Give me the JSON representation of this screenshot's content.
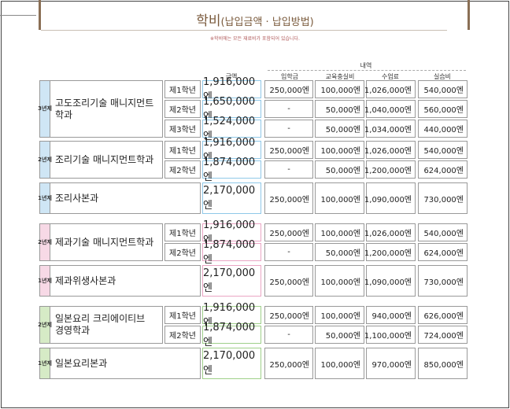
{
  "page": {
    "title_main": "학비",
    "title_sub": "(납입금액 · 납입방법)",
    "note": "※학비에는 모든 재료비가 포함되어 있습니다."
  },
  "headers": {
    "total": "금액",
    "breakdown": "내역",
    "admission": "입학금",
    "facility": "교육충실비",
    "tuition": "수업료",
    "practice": "실습비"
  },
  "groups": [
    {
      "tag": [
        "3",
        "년",
        "제"
      ],
      "name": "고도조리기술 매니지먼트학과",
      "color": "#cfe6f5",
      "border": "#8fc8e8",
      "rows": [
        {
          "grade": "제1학년",
          "total": "1,916,000엔",
          "admission": "250,000엔",
          "facility": "100,000엔",
          "tuition": "1,026,000엔",
          "practice": "540,000엔"
        },
        {
          "grade": "제2학년",
          "total": "1,650,000엔",
          "admission": "-",
          "facility": "50,000엔",
          "tuition": "1,040,000엔",
          "practice": "560,000엔"
        },
        {
          "grade": "제3학년",
          "total": "1,524,000엔",
          "admission": "-",
          "facility": "50,000엔",
          "tuition": "1,034,000엔",
          "practice": "440,000엔"
        }
      ]
    },
    {
      "tag": [
        "2",
        "년",
        "제"
      ],
      "name": "조리기술 매니지먼트학과",
      "color": "#cfe6f5",
      "border": "#8fc8e8",
      "rows": [
        {
          "grade": "제1학년",
          "total": "1,916,000엔",
          "admission": "250,000엔",
          "facility": "100,000엔",
          "tuition": "1,026,000엔",
          "practice": "540,000엔"
        },
        {
          "grade": "제2학년",
          "total": "1,874,000엔",
          "admission": "-",
          "facility": "50,000엔",
          "tuition": "1,200,000엔",
          "practice": "624,000엔"
        }
      ]
    },
    {
      "tag": [
        "1",
        "년",
        "제"
      ],
      "name": "조리사본과",
      "color": "#cfe6f5",
      "border": "#8fc8e8",
      "rows": [
        {
          "grade": "",
          "total": "2,170,000엔",
          "admission": "250,000엔",
          "facility": "100,000엔",
          "tuition": "1,090,000엔",
          "practice": "730,000엔"
        }
      ]
    },
    {
      "tag": [
        "2",
        "년",
        "제"
      ],
      "name": "제과기술 매니지먼트학과",
      "color": "#f7d9e6",
      "border": "#eaa5c4",
      "rows": [
        {
          "grade": "제1학년",
          "total": "1,916,000엔",
          "admission": "250,000엔",
          "facility": "100,000엔",
          "tuition": "1,026,000엔",
          "practice": "540,000엔"
        },
        {
          "grade": "제2학년",
          "total": "1,874,000엔",
          "admission": "-",
          "facility": "50,000엔",
          "tuition": "1,200,000엔",
          "practice": "624,000엔"
        }
      ]
    },
    {
      "tag": [
        "1",
        "년",
        "제"
      ],
      "name": "제과위생사본과",
      "color": "#f7d9e6",
      "border": "#eaa5c4",
      "rows": [
        {
          "grade": "",
          "total": "2,170,000엔",
          "admission": "250,000엔",
          "facility": "100,000엔",
          "tuition": "1,090,000엔",
          "practice": "730,000엔"
        }
      ]
    },
    {
      "tag": [
        "2",
        "년",
        "제"
      ],
      "name": "일본요리 크리에이티브\n경영학과",
      "color": "#d6ebc6",
      "border": "#9fd08a",
      "rows": [
        {
          "grade": "제1학년",
          "total": "1,916,000엔",
          "admission": "250,000엔",
          "facility": "100,000엔",
          "tuition": "940,000엔",
          "practice": "626,000엔"
        },
        {
          "grade": "제2학년",
          "total": "1,874,000엔",
          "admission": "-",
          "facility": "50,000엔",
          "tuition": "1,100,000엔",
          "practice": "724,000엔"
        }
      ]
    },
    {
      "tag": [
        "1",
        "년",
        "제"
      ],
      "name": "일본요리본과",
      "color": "#d6ebc6",
      "border": "#9fd08a",
      "rows": [
        {
          "grade": "",
          "total": "2,170,000엔",
          "admission": "250,000엔",
          "facility": "100,000엔",
          "tuition": "970,000엔",
          "practice": "850,000엔"
        }
      ]
    }
  ]
}
